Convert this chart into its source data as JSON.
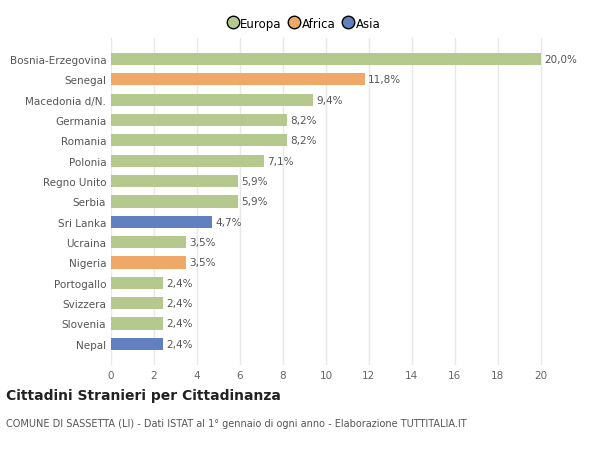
{
  "categories": [
    "Bosnia-Erzegovina",
    "Senegal",
    "Macedonia d/N.",
    "Germania",
    "Romania",
    "Polonia",
    "Regno Unito",
    "Serbia",
    "Sri Lanka",
    "Ucraina",
    "Nigeria",
    "Portogallo",
    "Svizzera",
    "Slovenia",
    "Nepal"
  ],
  "values": [
    20.0,
    11.8,
    9.4,
    8.2,
    8.2,
    7.1,
    5.9,
    5.9,
    4.7,
    3.5,
    3.5,
    2.4,
    2.4,
    2.4,
    2.4
  ],
  "labels": [
    "20,0%",
    "11,8%",
    "9,4%",
    "8,2%",
    "8,2%",
    "7,1%",
    "5,9%",
    "5,9%",
    "4,7%",
    "3,5%",
    "3,5%",
    "2,4%",
    "2,4%",
    "2,4%",
    "2,4%"
  ],
  "continent": [
    "Europa",
    "Africa",
    "Europa",
    "Europa",
    "Europa",
    "Europa",
    "Europa",
    "Europa",
    "Asia",
    "Europa",
    "Africa",
    "Europa",
    "Europa",
    "Europa",
    "Asia"
  ],
  "colors": {
    "Europa": "#b5c98e",
    "Africa": "#f0a868",
    "Asia": "#6080c0"
  },
  "xlim": [
    0,
    21.5
  ],
  "xticks": [
    0,
    2,
    4,
    6,
    8,
    10,
    12,
    14,
    16,
    18,
    20
  ],
  "title": "Cittadini Stranieri per Cittadinanza",
  "subtitle": "COMUNE DI SASSETTA (LI) - Dati ISTAT al 1° gennaio di ogni anno - Elaborazione TUTTITALIA.IT",
  "background_color": "#ffffff",
  "grid_color": "#e8e8e8",
  "label_fontsize": 7.5,
  "tick_fontsize": 7.5,
  "ytick_fontsize": 7.5,
  "title_fontsize": 10,
  "subtitle_fontsize": 7
}
